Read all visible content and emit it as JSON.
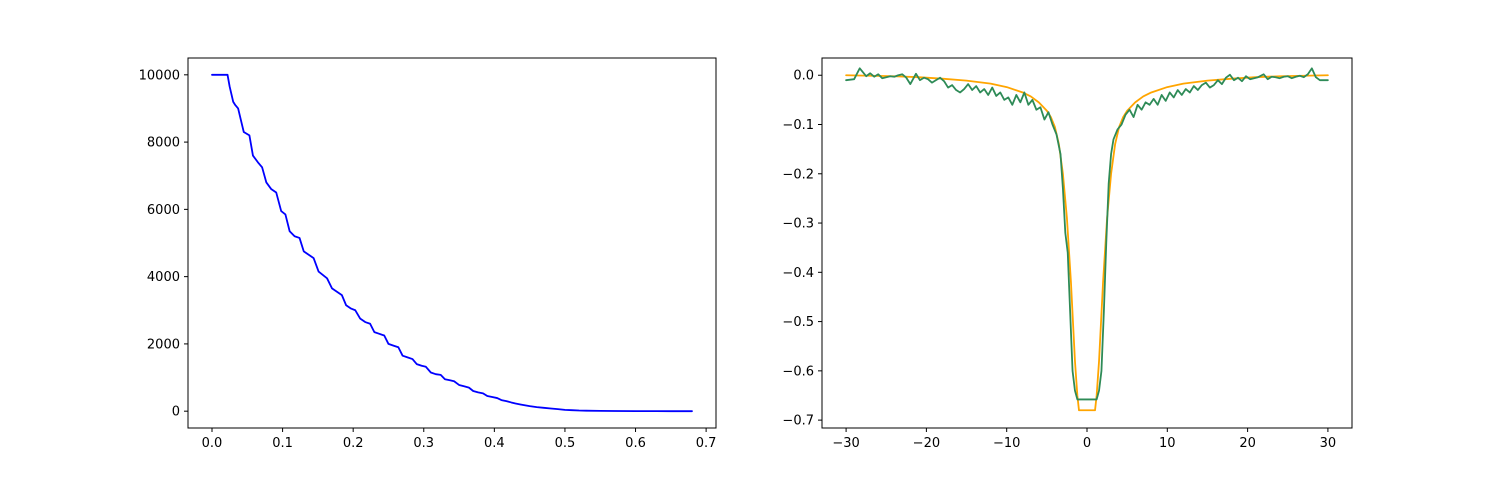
{
  "chart_data": [
    {
      "type": "line",
      "title": "",
      "xlabel": "",
      "ylabel": "",
      "xlim": [
        -0.034,
        0.714
      ],
      "ylim": [
        -500,
        10500
      ],
      "grid": false,
      "xticks": [
        0.0,
        0.1,
        0.2,
        0.3,
        0.4,
        0.5,
        0.6,
        0.7
      ],
      "xtick_labels": [
        "0.0",
        "0.1",
        "0.2",
        "0.3",
        "0.4",
        "0.5",
        "0.6",
        "0.7"
      ],
      "yticks": [
        0,
        2000,
        4000,
        6000,
        8000,
        10000
      ],
      "ytick_labels": [
        "0",
        "2000",
        "4000",
        "6000",
        "8000",
        "10000"
      ],
      "series": [
        {
          "color": "#0000ff",
          "x": [
            0.0,
            0.022,
            0.025,
            0.03,
            0.033,
            0.037,
            0.045,
            0.053,
            0.058,
            0.065,
            0.071,
            0.077,
            0.084,
            0.091,
            0.098,
            0.104,
            0.11,
            0.117,
            0.124,
            0.13,
            0.137,
            0.144,
            0.151,
            0.157,
            0.163,
            0.17,
            0.177,
            0.184,
            0.19,
            0.197,
            0.203,
            0.21,
            0.217,
            0.224,
            0.23,
            0.237,
            0.244,
            0.25,
            0.257,
            0.264,
            0.27,
            0.277,
            0.284,
            0.29,
            0.297,
            0.303,
            0.31,
            0.317,
            0.324,
            0.33,
            0.337,
            0.343,
            0.35,
            0.357,
            0.364,
            0.37,
            0.377,
            0.384,
            0.39,
            0.397,
            0.404,
            0.41,
            0.417,
            0.424,
            0.43,
            0.437,
            0.45,
            0.46,
            0.47,
            0.48,
            0.49,
            0.5,
            0.51,
            0.52,
            0.53,
            0.55,
            0.57,
            0.6,
            0.63,
            0.65,
            0.68
          ],
          "y": [
            10000,
            10000,
            9650,
            9200,
            9100,
            9000,
            8300,
            8200,
            7600,
            7400,
            7250,
            6800,
            6600,
            6500,
            5950,
            5850,
            5350,
            5200,
            5150,
            4750,
            4650,
            4550,
            4150,
            4050,
            3950,
            3650,
            3550,
            3450,
            3150,
            3050,
            3000,
            2750,
            2650,
            2600,
            2350,
            2300,
            2250,
            2000,
            1950,
            1900,
            1650,
            1600,
            1550,
            1400,
            1350,
            1320,
            1150,
            1100,
            1080,
            950,
            920,
            890,
            780,
            740,
            700,
            600,
            560,
            530,
            450,
            420,
            390,
            330,
            300,
            260,
            230,
            200,
            150,
            120,
            100,
            80,
            60,
            40,
            30,
            20,
            15,
            10,
            5,
            2,
            1,
            0,
            0
          ]
        }
      ]
    },
    {
      "type": "line",
      "title": "",
      "xlabel": "",
      "ylabel": "",
      "xlim": [
        -33,
        33
      ],
      "ylim": [
        -0.716,
        0.035
      ],
      "grid": false,
      "xticks": [
        -30,
        -20,
        -10,
        0,
        10,
        20,
        30
      ],
      "xtick_labels": [
        "−30",
        "−20",
        "−10",
        "0",
        "10",
        "20",
        "30"
      ],
      "yticks": [
        0.0,
        -0.1,
        -0.2,
        -0.3,
        -0.4,
        -0.5,
        -0.6,
        -0.7
      ],
      "ytick_labels": [
        "0.0",
        "−0.1",
        "−0.2",
        "−0.3",
        "−0.4",
        "−0.5",
        "−0.6",
        "−0.7"
      ],
      "series": [
        {
          "color": "#ffa500",
          "x": [
            -30,
            -27,
            -24,
            -21,
            -18,
            -15,
            -12,
            -10,
            -8,
            -7,
            -6,
            -5,
            -4.5,
            -4,
            -3.5,
            -3,
            -2.5,
            -2,
            -1.5,
            -1.2,
            -1,
            1,
            1.2,
            1.5,
            2,
            2.5,
            3,
            3.5,
            4,
            4.5,
            5,
            6,
            7,
            8,
            10,
            12,
            15,
            18,
            21,
            24,
            27,
            30
          ],
          "y": [
            0.0,
            -0.001,
            -0.002,
            -0.004,
            -0.007,
            -0.011,
            -0.017,
            -0.024,
            -0.035,
            -0.043,
            -0.055,
            -0.072,
            -0.085,
            -0.105,
            -0.14,
            -0.2,
            -0.29,
            -0.42,
            -0.58,
            -0.65,
            -0.68,
            -0.68,
            -0.65,
            -0.58,
            -0.42,
            -0.29,
            -0.2,
            -0.14,
            -0.105,
            -0.085,
            -0.072,
            -0.055,
            -0.043,
            -0.035,
            -0.024,
            -0.017,
            -0.011,
            -0.007,
            -0.004,
            -0.002,
            -0.001,
            0.0
          ]
        },
        {
          "color": "#2e8b57",
          "x": [
            -30,
            -29,
            -28.3,
            -27.5,
            -27,
            -26.5,
            -26,
            -25.5,
            -25,
            -24.5,
            -24,
            -23.5,
            -23,
            -22.5,
            -22,
            -21.3,
            -20.8,
            -20.3,
            -19.8,
            -19.3,
            -18.8,
            -18.3,
            -17.8,
            -17.3,
            -16.8,
            -16.3,
            -15.8,
            -15.3,
            -14.8,
            -14.3,
            -13.8,
            -13.3,
            -12.8,
            -12.3,
            -11.8,
            -11.3,
            -10.8,
            -10.3,
            -9.8,
            -9.3,
            -8.8,
            -8.3,
            -7.8,
            -7.3,
            -6.8,
            -6.3,
            -5.8,
            -5.3,
            -4.8,
            -4.3,
            -3.8,
            -3.3,
            -3.0,
            -2.7,
            -2.4,
            -2.1,
            -1.8,
            -1.5,
            -1.2,
            -1.0,
            1.0,
            1.2,
            1.5,
            1.8,
            2.1,
            2.4,
            2.7,
            3.0,
            3.3,
            3.8,
            4.3,
            4.8,
            5.3,
            5.8,
            6.3,
            6.8,
            7.3,
            7.8,
            8.3,
            8.8,
            9.3,
            9.8,
            10.3,
            10.8,
            11.3,
            11.8,
            12.3,
            12.8,
            13.3,
            13.8,
            14.3,
            14.8,
            15.3,
            15.8,
            16.3,
            16.8,
            17.3,
            17.8,
            18.3,
            18.8,
            19.3,
            19.8,
            20.3,
            20.8,
            21.3,
            22,
            22.5,
            23,
            23.5,
            24,
            24.5,
            25,
            25.5,
            26,
            26.5,
            27,
            27.5,
            28,
            28.5,
            29,
            30
          ],
          "y": [
            -0.01,
            -0.008,
            0.014,
            -0.002,
            0.004,
            -0.003,
            0.002,
            -0.006,
            -0.004,
            -0.002,
            -0.003,
            0.0,
            0.002,
            -0.005,
            -0.018,
            0.003,
            -0.01,
            -0.005,
            -0.008,
            -0.015,
            -0.01,
            -0.005,
            -0.012,
            -0.025,
            -0.02,
            -0.03,
            -0.035,
            -0.028,
            -0.018,
            -0.03,
            -0.022,
            -0.035,
            -0.028,
            -0.04,
            -0.025,
            -0.042,
            -0.035,
            -0.05,
            -0.045,
            -0.06,
            -0.04,
            -0.055,
            -0.035,
            -0.06,
            -0.05,
            -0.07,
            -0.065,
            -0.09,
            -0.075,
            -0.1,
            -0.12,
            -0.16,
            -0.23,
            -0.32,
            -0.36,
            -0.48,
            -0.6,
            -0.64,
            -0.658,
            -0.658,
            -0.658,
            -0.658,
            -0.64,
            -0.6,
            -0.48,
            -0.34,
            -0.22,
            -0.16,
            -0.13,
            -0.11,
            -0.1,
            -0.08,
            -0.07,
            -0.085,
            -0.06,
            -0.07,
            -0.055,
            -0.06,
            -0.048,
            -0.06,
            -0.04,
            -0.052,
            -0.035,
            -0.045,
            -0.03,
            -0.04,
            -0.028,
            -0.035,
            -0.022,
            -0.03,
            -0.02,
            -0.015,
            -0.025,
            -0.02,
            -0.01,
            -0.018,
            -0.005,
            0.001,
            -0.01,
            -0.005,
            -0.012,
            -0.002,
            -0.008,
            -0.006,
            -0.004,
            0.002,
            -0.008,
            -0.003,
            -0.004,
            -0.006,
            -0.003,
            -0.002,
            -0.006,
            -0.003,
            -0.001,
            -0.004,
            0.002,
            0.014,
            -0.004,
            -0.01,
            -0.01
          ]
        }
      ]
    }
  ]
}
